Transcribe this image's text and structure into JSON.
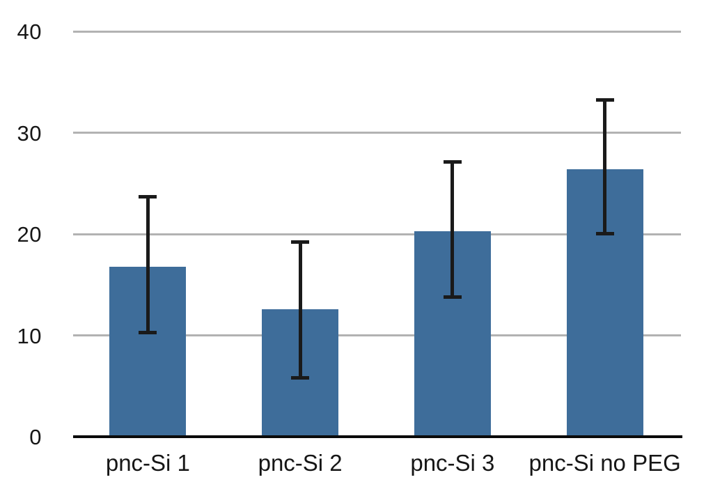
{
  "chart_data": {
    "type": "bar",
    "title": "",
    "xlabel": "",
    "ylabel": "",
    "categories": [
      "pnc-Si 1",
      "pnc-Si 2",
      "pnc-Si 3",
      "pnc-Si no PEG"
    ],
    "values": [
      16.8,
      12.6,
      20.3,
      26.4
    ],
    "error_bar_top": [
      23.8,
      19.3,
      27.2,
      33.3
    ],
    "error_bar_bottom": [
      10.2,
      5.7,
      13.7,
      19.9
    ],
    "yticks": [
      0,
      10,
      20,
      30,
      40
    ],
    "ylim": [
      0,
      40
    ],
    "grid": true,
    "legend": false,
    "colors": {
      "bar": "#3E6D9A",
      "gridline": "#B2B2B2",
      "axis": "#0A0A0A",
      "error_bar": "#1A1A1A",
      "text": "#161616",
      "background": "#FFFFFF"
    }
  }
}
